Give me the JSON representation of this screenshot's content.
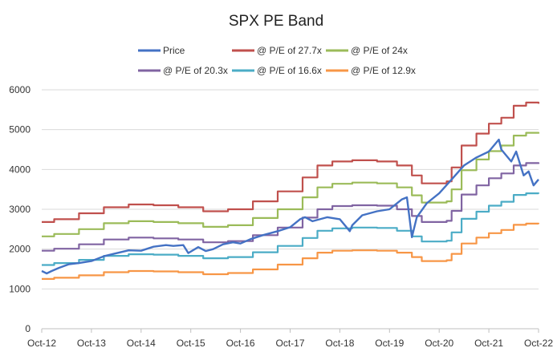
{
  "chart_data": {
    "type": "line",
    "title": "SPX PE Band",
    "xlabel": "",
    "ylabel": "",
    "ylim": [
      0,
      6000
    ],
    "y_ticks": [
      "0",
      "1000",
      "2000",
      "3000",
      "4000",
      "5000",
      "6000"
    ],
    "x_ticks": [
      "Oct-12",
      "Oct-13",
      "Oct-14",
      "Oct-15",
      "Oct-16",
      "Oct-17",
      "Oct-18",
      "Oct-19",
      "Oct-20",
      "Oct-21",
      "Oct-22"
    ],
    "x_range": [
      2012.75,
      2022.75
    ],
    "grid": "horizontal",
    "legend_position": "top",
    "series": [
      {
        "name": "Price",
        "color": "#4472C4",
        "x": [
          2012.75,
          2012.85,
          2012.95,
          2013.1,
          2013.3,
          2013.5,
          2013.75,
          2014.0,
          2014.2,
          2014.5,
          2014.75,
          2015.0,
          2015.25,
          2015.4,
          2015.6,
          2015.7,
          2015.9,
          2016.05,
          2016.2,
          2016.4,
          2016.6,
          2016.75,
          2016.95,
          2017.2,
          2017.5,
          2017.75,
          2017.95,
          2018.05,
          2018.2,
          2018.5,
          2018.75,
          2018.95,
          2019.0,
          2019.2,
          2019.35,
          2019.5,
          2019.75,
          2020.0,
          2020.1,
          2020.2,
          2020.3,
          2020.5,
          2020.75,
          2021.0,
          2021.25,
          2021.5,
          2021.75,
          2021.95,
          2022.0,
          2022.2,
          2022.3,
          2022.45,
          2022.55,
          2022.65,
          2022.75
        ],
        "values": [
          1450,
          1390,
          1450,
          1530,
          1620,
          1650,
          1700,
          1820,
          1880,
          1970,
          1960,
          2060,
          2100,
          2080,
          2100,
          1900,
          2050,
          1950,
          2000,
          2120,
          2170,
          2140,
          2250,
          2350,
          2450,
          2550,
          2750,
          2800,
          2700,
          2800,
          2750,
          2450,
          2600,
          2850,
          2900,
          2950,
          3000,
          3250,
          3300,
          2300,
          2800,
          3150,
          3400,
          3750,
          4100,
          4300,
          4450,
          4750,
          4500,
          4200,
          4450,
          3850,
          3950,
          3600,
          3750
        ]
      },
      {
        "name": "@ P/E of 27.7x",
        "color": "#C0504D",
        "x": [
          2012.75,
          2013.0,
          2013.5,
          2014.0,
          2014.5,
          2015.0,
          2015.5,
          2016.0,
          2016.5,
          2017.0,
          2017.5,
          2018.0,
          2018.3,
          2018.6,
          2019.0,
          2019.5,
          2019.9,
          2020.2,
          2020.4,
          2020.6,
          2020.9,
          2021.0,
          2021.2,
          2021.5,
          2021.75,
          2022.0,
          2022.25,
          2022.5,
          2022.75
        ],
        "values": [
          2680,
          2750,
          2900,
          3050,
          3120,
          3100,
          3050,
          2950,
          3000,
          3200,
          3450,
          3800,
          4100,
          4200,
          4230,
          4200,
          4100,
          3850,
          3650,
          3650,
          3700,
          4050,
          4600,
          4900,
          5150,
          5300,
          5600,
          5680,
          5650
        ]
      },
      {
        "name": "@ P/E of 24x",
        "color": "#9BBB59",
        "x": [
          2012.75,
          2013.0,
          2013.5,
          2014.0,
          2014.5,
          2015.0,
          2015.5,
          2016.0,
          2016.5,
          2017.0,
          2017.5,
          2018.0,
          2018.3,
          2018.6,
          2019.0,
          2019.5,
          2019.9,
          2020.2,
          2020.4,
          2020.6,
          2020.9,
          2021.0,
          2021.2,
          2021.5,
          2021.75,
          2022.0,
          2022.25,
          2022.5,
          2022.75
        ],
        "values": [
          2320,
          2380,
          2500,
          2650,
          2700,
          2680,
          2650,
          2560,
          2600,
          2780,
          3000,
          3300,
          3550,
          3640,
          3670,
          3650,
          3550,
          3350,
          3170,
          3170,
          3200,
          3500,
          3980,
          4250,
          4460,
          4600,
          4850,
          4920,
          4900
        ]
      },
      {
        "name": "@ P/E of 20.3x",
        "color": "#8064A2",
        "x": [
          2012.75,
          2013.0,
          2013.5,
          2014.0,
          2014.5,
          2015.0,
          2015.5,
          2016.0,
          2016.5,
          2017.0,
          2017.5,
          2018.0,
          2018.3,
          2018.6,
          2019.0,
          2019.5,
          2019.9,
          2020.2,
          2020.4,
          2020.6,
          2020.9,
          2021.0,
          2021.2,
          2021.5,
          2021.75,
          2022.0,
          2022.25,
          2022.5,
          2022.75
        ],
        "values": [
          1960,
          2010,
          2120,
          2240,
          2290,
          2270,
          2240,
          2170,
          2200,
          2350,
          2540,
          2790,
          3000,
          3080,
          3100,
          3090,
          3000,
          2830,
          2680,
          2680,
          2710,
          2960,
          3370,
          3600,
          3780,
          3900,
          4100,
          4160,
          4140
        ]
      },
      {
        "name": "@ P/E of 16.6x",
        "color": "#4BACC6",
        "x": [
          2012.75,
          2013.0,
          2013.5,
          2014.0,
          2014.5,
          2015.0,
          2015.5,
          2016.0,
          2016.5,
          2017.0,
          2017.5,
          2018.0,
          2018.3,
          2018.6,
          2019.0,
          2019.5,
          2019.9,
          2020.2,
          2020.4,
          2020.6,
          2020.9,
          2021.0,
          2021.2,
          2021.5,
          2021.75,
          2022.0,
          2022.25,
          2022.5,
          2022.75
        ],
        "values": [
          1600,
          1650,
          1730,
          1830,
          1870,
          1860,
          1830,
          1770,
          1800,
          1920,
          2080,
          2280,
          2460,
          2520,
          2540,
          2530,
          2460,
          2320,
          2190,
          2190,
          2210,
          2420,
          2760,
          2940,
          3090,
          3190,
          3360,
          3400,
          3390
        ]
      },
      {
        "name": "@ P/E of 12.9x",
        "color": "#F79646",
        "x": [
          2012.75,
          2013.0,
          2013.5,
          2014.0,
          2014.5,
          2015.0,
          2015.5,
          2016.0,
          2016.5,
          2017.0,
          2017.5,
          2018.0,
          2018.3,
          2018.6,
          2019.0,
          2019.5,
          2019.9,
          2020.2,
          2020.4,
          2020.6,
          2020.9,
          2021.0,
          2021.2,
          2021.5,
          2021.75,
          2022.0,
          2022.25,
          2022.5,
          2022.75
        ],
        "values": [
          1250,
          1280,
          1340,
          1420,
          1450,
          1440,
          1420,
          1370,
          1400,
          1490,
          1610,
          1770,
          1910,
          1960,
          1970,
          1960,
          1910,
          1800,
          1700,
          1700,
          1720,
          1880,
          2140,
          2290,
          2400,
          2480,
          2610,
          2640,
          2630
        ]
      }
    ]
  }
}
